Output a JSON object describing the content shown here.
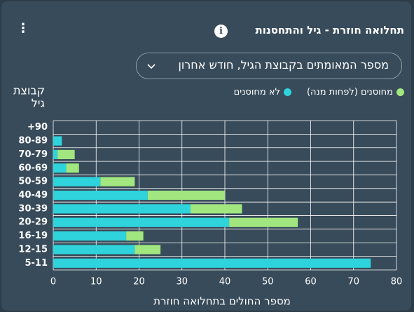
{
  "chart_data": {
    "type": "stacked-barh",
    "title": "תחלואה חוזרת - גיל והתחסנות",
    "dropdown": "מספר המאומתים בקבוצת הגיל, חודש אחרון",
    "y_label": [
      "קבוצת",
      "גיל"
    ],
    "x_label": "מספר החולים בתחלואה חוזרת",
    "categories": [
      "+90",
      "80-89",
      "70-79",
      "60-69",
      "50-59",
      "40-49",
      "30-39",
      "20-29",
      "16-19",
      "12-15",
      "5-11"
    ],
    "series": [
      {
        "name": "לא מחוסנים",
        "color": "#2ed3dc",
        "values": [
          0,
          2,
          1,
          3,
          11,
          22,
          32,
          41,
          17,
          19,
          74
        ]
      },
      {
        "name": "מחוסנים (לפחות מנה)",
        "color": "#a1e67f",
        "values": [
          0,
          0,
          4,
          3,
          8,
          18,
          12,
          16,
          4,
          6,
          0
        ]
      }
    ],
    "xlim": [
      0,
      80
    ],
    "xticks": [
      0,
      10,
      20,
      30,
      40,
      50,
      60,
      70,
      80
    ],
    "grid": true
  }
}
